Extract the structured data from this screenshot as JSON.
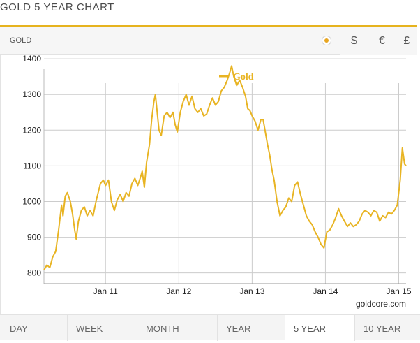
{
  "page": {
    "title": "GOLD 5 YEAR CHART"
  },
  "metal_tab": {
    "label": "GOLD"
  },
  "currencies": [
    {
      "symbol": "$",
      "selected": true
    },
    {
      "symbol": "€",
      "selected": false
    },
    {
      "symbol": "£",
      "selected": false
    }
  ],
  "ranges": [
    {
      "label": "DAY"
    },
    {
      "label": "WEEK"
    },
    {
      "label": "MONTH"
    },
    {
      "label": "YEAR"
    },
    {
      "label": "5 YEAR",
      "selected": true
    },
    {
      "label": "10 YEAR"
    }
  ],
  "source": "goldcore.com",
  "colors": {
    "accent": "#e6b31e",
    "line": "#e8b423",
    "grid": "#cccccc"
  },
  "chart_data": {
    "type": "line",
    "legend": {
      "position": "top-center"
    },
    "x_tick_labels": [
      "Jan 11",
      "Jan 12",
      "Jan 13",
      "Jan 14",
      "Jan 15"
    ],
    "y_ticks": [
      800,
      900,
      1000,
      1100,
      1200,
      1300,
      1400
    ],
    "ylim": [
      770,
      1410
    ],
    "xlim": [
      2010.16,
      2015.1
    ],
    "grid": true,
    "series": [
      {
        "name": "Gold",
        "points": [
          [
            2010.16,
            808
          ],
          [
            2010.2,
            822
          ],
          [
            2010.24,
            815
          ],
          [
            2010.28,
            845
          ],
          [
            2010.32,
            860
          ],
          [
            2010.36,
            920
          ],
          [
            2010.4,
            990
          ],
          [
            2010.42,
            960
          ],
          [
            2010.45,
            1015
          ],
          [
            2010.48,
            1025
          ],
          [
            2010.52,
            1000
          ],
          [
            2010.55,
            965
          ],
          [
            2010.58,
            920
          ],
          [
            2010.6,
            895
          ],
          [
            2010.63,
            945
          ],
          [
            2010.67,
            975
          ],
          [
            2010.71,
            985
          ],
          [
            2010.75,
            960
          ],
          [
            2010.79,
            975
          ],
          [
            2010.83,
            960
          ],
          [
            2010.87,
            1000
          ],
          [
            2010.9,
            1025
          ],
          [
            2010.93,
            1050
          ],
          [
            2010.97,
            1060
          ],
          [
            2011.0,
            1045
          ],
          [
            2011.04,
            1060
          ],
          [
            2011.08,
            1000
          ],
          [
            2011.12,
            975
          ],
          [
            2011.16,
            1005
          ],
          [
            2011.2,
            1020
          ],
          [
            2011.24,
            1000
          ],
          [
            2011.28,
            1025
          ],
          [
            2011.32,
            1015
          ],
          [
            2011.36,
            1050
          ],
          [
            2011.4,
            1065
          ],
          [
            2011.44,
            1045
          ],
          [
            2011.48,
            1070
          ],
          [
            2011.5,
            1085
          ],
          [
            2011.53,
            1040
          ],
          [
            2011.56,
            1110
          ],
          [
            2011.6,
            1160
          ],
          [
            2011.63,
            1230
          ],
          [
            2011.66,
            1280
          ],
          [
            2011.68,
            1300
          ],
          [
            2011.7,
            1260
          ],
          [
            2011.73,
            1200
          ],
          [
            2011.76,
            1185
          ],
          [
            2011.8,
            1240
          ],
          [
            2011.84,
            1250
          ],
          [
            2011.88,
            1235
          ],
          [
            2011.92,
            1250
          ],
          [
            2011.95,
            1215
          ],
          [
            2011.98,
            1195
          ],
          [
            2012.02,
            1250
          ],
          [
            2012.06,
            1280
          ],
          [
            2012.1,
            1300
          ],
          [
            2012.14,
            1270
          ],
          [
            2012.18,
            1295
          ],
          [
            2012.22,
            1260
          ],
          [
            2012.26,
            1250
          ],
          [
            2012.3,
            1260
          ],
          [
            2012.34,
            1240
          ],
          [
            2012.38,
            1245
          ],
          [
            2012.42,
            1270
          ],
          [
            2012.46,
            1290
          ],
          [
            2012.5,
            1270
          ],
          [
            2012.54,
            1280
          ],
          [
            2012.58,
            1310
          ],
          [
            2012.62,
            1320
          ],
          [
            2012.66,
            1340
          ],
          [
            2012.7,
            1365
          ],
          [
            2012.72,
            1380
          ],
          [
            2012.75,
            1350
          ],
          [
            2012.79,
            1325
          ],
          [
            2012.83,
            1340
          ],
          [
            2012.87,
            1320
          ],
          [
            2012.91,
            1295
          ],
          [
            2012.94,
            1260
          ],
          [
            2012.97,
            1255
          ],
          [
            2013.0,
            1240
          ],
          [
            2013.04,
            1225
          ],
          [
            2013.08,
            1200
          ],
          [
            2013.12,
            1230
          ],
          [
            2013.15,
            1230
          ],
          [
            2013.18,
            1195
          ],
          [
            2013.21,
            1160
          ],
          [
            2013.24,
            1130
          ],
          [
            2013.27,
            1090
          ],
          [
            2013.3,
            1060
          ],
          [
            2013.34,
            1000
          ],
          [
            2013.38,
            960
          ],
          [
            2013.42,
            975
          ],
          [
            2013.46,
            985
          ],
          [
            2013.5,
            1010
          ],
          [
            2013.54,
            1000
          ],
          [
            2013.58,
            1045
          ],
          [
            2013.62,
            1055
          ],
          [
            2013.66,
            1020
          ],
          [
            2013.7,
            990
          ],
          [
            2013.74,
            960
          ],
          [
            2013.78,
            945
          ],
          [
            2013.82,
            935
          ],
          [
            2013.86,
            915
          ],
          [
            2013.9,
            900
          ],
          [
            2013.94,
            880
          ],
          [
            2013.98,
            870
          ],
          [
            2014.02,
            915
          ],
          [
            2014.06,
            920
          ],
          [
            2014.1,
            935
          ],
          [
            2014.14,
            955
          ],
          [
            2014.18,
            980
          ],
          [
            2014.22,
            960
          ],
          [
            2014.26,
            945
          ],
          [
            2014.3,
            930
          ],
          [
            2014.34,
            940
          ],
          [
            2014.38,
            930
          ],
          [
            2014.42,
            935
          ],
          [
            2014.46,
            945
          ],
          [
            2014.5,
            965
          ],
          [
            2014.54,
            975
          ],
          [
            2014.58,
            970
          ],
          [
            2014.62,
            960
          ],
          [
            2014.66,
            975
          ],
          [
            2014.7,
            970
          ],
          [
            2014.74,
            945
          ],
          [
            2014.78,
            960
          ],
          [
            2014.82,
            955
          ],
          [
            2014.86,
            970
          ],
          [
            2014.9,
            965
          ],
          [
            2014.94,
            975
          ],
          [
            2014.98,
            990
          ],
          [
            2015.02,
            1060
          ],
          [
            2015.05,
            1150
          ],
          [
            2015.08,
            1105
          ],
          [
            2015.1,
            1100
          ]
        ]
      }
    ]
  }
}
